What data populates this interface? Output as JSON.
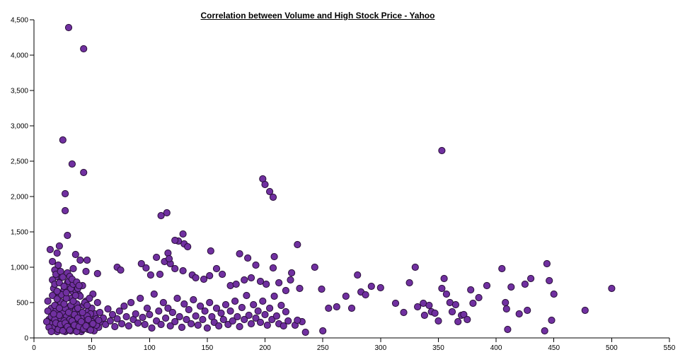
{
  "chart_data": {
    "type": "scatter",
    "title": "Correlation between Volume and High Stock Price - Yahoo",
    "xlabel": "",
    "ylabel": "",
    "xlim": [
      0,
      550
    ],
    "ylim": [
      0,
      4500
    ],
    "x_ticks": [
      "0",
      "50",
      "100",
      "150",
      "200",
      "250",
      "300",
      "350",
      "400",
      "450",
      "500",
      "550"
    ],
    "y_ticks": [
      "0",
      "500",
      "1,000",
      "1,500",
      "2,000",
      "2,500",
      "3,000",
      "3,500",
      "4,000",
      "4,500"
    ],
    "grid": false,
    "point_color": "#7030a0",
    "point_edge_color": "#2a0f3a",
    "points": [
      [
        30,
        4390
      ],
      [
        43,
        4090
      ],
      [
        25,
        2800
      ],
      [
        33,
        2460
      ],
      [
        43,
        2340
      ],
      [
        27,
        2040
      ],
      [
        27,
        1800
      ],
      [
        29,
        1450
      ],
      [
        22,
        1300
      ],
      [
        14,
        1250
      ],
      [
        16,
        1080
      ],
      [
        20,
        1200
      ],
      [
        36,
        1180
      ],
      [
        40,
        1100
      ],
      [
        46,
        1100
      ],
      [
        55,
        910
      ],
      [
        34,
        980
      ],
      [
        45,
        940
      ],
      [
        353,
        2650
      ],
      [
        198,
        2250
      ],
      [
        200,
        2170
      ],
      [
        204,
        2070
      ],
      [
        207,
        1990
      ],
      [
        110,
        1730
      ],
      [
        115,
        1770
      ],
      [
        129,
        1470
      ],
      [
        125,
        1370
      ],
      [
        122,
        1380
      ],
      [
        130,
        1330
      ],
      [
        133,
        1290
      ],
      [
        153,
        1230
      ],
      [
        113,
        1080
      ],
      [
        118,
        1050
      ],
      [
        116,
        1200
      ],
      [
        117,
        1120
      ],
      [
        106,
        1140
      ],
      [
        178,
        1190
      ],
      [
        185,
        1130
      ],
      [
        192,
        1030
      ],
      [
        208,
        1150
      ],
      [
        207,
        990
      ],
      [
        228,
        1320
      ],
      [
        223,
        920
      ],
      [
        243,
        1000
      ],
      [
        230,
        700
      ],
      [
        72,
        1000
      ],
      [
        75,
        960
      ],
      [
        93,
        1050
      ],
      [
        97,
        990
      ],
      [
        101,
        890
      ],
      [
        109,
        900
      ],
      [
        122,
        980
      ],
      [
        129,
        950
      ],
      [
        137,
        890
      ],
      [
        140,
        850
      ],
      [
        147,
        830
      ],
      [
        152,
        880
      ],
      [
        158,
        980
      ],
      [
        163,
        900
      ],
      [
        170,
        740
      ],
      [
        175,
        760
      ],
      [
        182,
        820
      ],
      [
        188,
        850
      ],
      [
        196,
        800
      ],
      [
        201,
        760
      ],
      [
        212,
        780
      ],
      [
        218,
        670
      ],
      [
        222,
        820
      ],
      [
        249,
        690
      ],
      [
        255,
        420
      ],
      [
        262,
        440
      ],
      [
        270,
        590
      ],
      [
        275,
        420
      ],
      [
        280,
        890
      ],
      [
        283,
        650
      ],
      [
        287,
        610
      ],
      [
        292,
        730
      ],
      [
        300,
        710
      ],
      [
        313,
        490
      ],
      [
        320,
        360
      ],
      [
        325,
        780
      ],
      [
        330,
        1000
      ],
      [
        332,
        440
      ],
      [
        337,
        490
      ],
      [
        338,
        320
      ],
      [
        342,
        460
      ],
      [
        344,
        370
      ],
      [
        347,
        350
      ],
      [
        350,
        240
      ],
      [
        353,
        700
      ],
      [
        355,
        840
      ],
      [
        357,
        620
      ],
      [
        360,
        500
      ],
      [
        362,
        370
      ],
      [
        365,
        470
      ],
      [
        367,
        230
      ],
      [
        370,
        320
      ],
      [
        372,
        330
      ],
      [
        375,
        260
      ],
      [
        378,
        680
      ],
      [
        380,
        490
      ],
      [
        385,
        570
      ],
      [
        392,
        740
      ],
      [
        405,
        980
      ],
      [
        408,
        500
      ],
      [
        409,
        410
      ],
      [
        410,
        120
      ],
      [
        413,
        720
      ],
      [
        420,
        340
      ],
      [
        425,
        760
      ],
      [
        427,
        390
      ],
      [
        430,
        840
      ],
      [
        442,
        100
      ],
      [
        444,
        1050
      ],
      [
        446,
        810
      ],
      [
        448,
        250
      ],
      [
        450,
        620
      ],
      [
        477,
        390
      ],
      [
        500,
        700
      ],
      [
        250,
        100
      ],
      [
        235,
        80
      ],
      [
        232,
        230
      ],
      [
        226,
        180
      ],
      [
        228,
        250
      ],
      [
        12,
        520
      ],
      [
        13,
        260
      ],
      [
        14,
        180
      ],
      [
        15,
        420
      ],
      [
        16,
        600
      ],
      [
        17,
        700
      ],
      [
        18,
        330
      ],
      [
        19,
        140
      ],
      [
        20,
        870
      ],
      [
        21,
        640
      ],
      [
        22,
        240
      ],
      [
        23,
        510
      ],
      [
        24,
        180
      ],
      [
        25,
        360
      ],
      [
        26,
        680
      ],
      [
        27,
        90
      ],
      [
        28,
        300
      ],
      [
        29,
        780
      ],
      [
        30,
        150
      ],
      [
        31,
        430
      ],
      [
        32,
        560
      ],
      [
        33,
        270
      ],
      [
        34,
        650
      ],
      [
        35,
        120
      ],
      [
        36,
        390
      ],
      [
        37,
        480
      ],
      [
        38,
        220
      ],
      [
        39,
        610
      ],
      [
        40,
        330
      ],
      [
        41,
        170
      ],
      [
        42,
        740
      ],
      [
        43,
        460
      ],
      [
        44,
        260
      ],
      [
        45,
        520
      ],
      [
        46,
        140
      ],
      [
        47,
        380
      ],
      [
        48,
        290
      ],
      [
        49,
        210
      ],
      [
        50,
        420
      ],
      [
        51,
        620
      ],
      [
        52,
        180
      ],
      [
        53,
        340
      ],
      [
        54,
        270
      ],
      [
        55,
        500
      ],
      [
        56,
        150
      ],
      [
        57,
        360
      ],
      [
        58,
        230
      ],
      [
        60,
        280
      ],
      [
        62,
        190
      ],
      [
        64,
        410
      ],
      [
        66,
        240
      ],
      [
        68,
        330
      ],
      [
        70,
        160
      ],
      [
        72,
        270
      ],
      [
        74,
        380
      ],
      [
        76,
        200
      ],
      [
        78,
        450
      ],
      [
        80,
        300
      ],
      [
        82,
        170
      ],
      [
        84,
        500
      ],
      [
        86,
        260
      ],
      [
        88,
        340
      ],
      [
        90,
        210
      ],
      [
        92,
        560
      ],
      [
        94,
        290
      ],
      [
        96,
        190
      ],
      [
        98,
        420
      ],
      [
        100,
        330
      ],
      [
        102,
        140
      ],
      [
        104,
        620
      ],
      [
        106,
        240
      ],
      [
        108,
        380
      ],
      [
        110,
        190
      ],
      [
        112,
        500
      ],
      [
        114,
        280
      ],
      [
        116,
        420
      ],
      [
        118,
        170
      ],
      [
        120,
        360
      ],
      [
        122,
        230
      ],
      [
        124,
        560
      ],
      [
        126,
        300
      ],
      [
        128,
        150
      ],
      [
        130,
        480
      ],
      [
        132,
        260
      ],
      [
        134,
        400
      ],
      [
        136,
        200
      ],
      [
        138,
        540
      ],
      [
        140,
        310
      ],
      [
        142,
        180
      ],
      [
        144,
        450
      ],
      [
        146,
        260
      ],
      [
        148,
        380
      ],
      [
        150,
        140
      ],
      [
        152,
        500
      ],
      [
        154,
        300
      ],
      [
        156,
        220
      ],
      [
        158,
        420
      ],
      [
        160,
        170
      ],
      [
        162,
        350
      ],
      [
        164,
        260
      ],
      [
        166,
        470
      ],
      [
        168,
        190
      ],
      [
        170,
        380
      ],
      [
        172,
        240
      ],
      [
        174,
        520
      ],
      [
        176,
        300
      ],
      [
        178,
        160
      ],
      [
        180,
        430
      ],
      [
        182,
        260
      ],
      [
        184,
        600
      ],
      [
        186,
        320
      ],
      [
        188,
        200
      ],
      [
        190,
        470
      ],
      [
        192,
        280
      ],
      [
        194,
        380
      ],
      [
        196,
        220
      ],
      [
        198,
        520
      ],
      [
        200,
        330
      ],
      [
        202,
        180
      ],
      [
        204,
        420
      ],
      [
        206,
        260
      ],
      [
        208,
        590
      ],
      [
        210,
        310
      ],
      [
        212,
        200
      ],
      [
        214,
        460
      ],
      [
        216,
        170
      ],
      [
        218,
        370
      ],
      [
        220,
        240
      ],
      [
        15,
        300
      ],
      [
        17,
        220
      ],
      [
        19,
        380
      ],
      [
        21,
        160
      ],
      [
        23,
        280
      ],
      [
        25,
        200
      ],
      [
        27,
        420
      ],
      [
        29,
        110
      ],
      [
        31,
        260
      ],
      [
        33,
        190
      ],
      [
        35,
        330
      ],
      [
        37,
        140
      ],
      [
        39,
        250
      ],
      [
        41,
        90
      ],
      [
        43,
        300
      ],
      [
        45,
        230
      ],
      [
        47,
        120
      ],
      [
        49,
        340
      ],
      [
        14,
        200
      ],
      [
        16,
        140
      ],
      [
        18,
        260
      ],
      [
        20,
        90
      ],
      [
        22,
        320
      ],
      [
        24,
        120
      ],
      [
        26,
        240
      ],
      [
        28,
        170
      ],
      [
        30,
        360
      ],
      [
        32,
        100
      ],
      [
        34,
        220
      ],
      [
        36,
        150
      ],
      [
        38,
        280
      ],
      [
        40,
        200
      ],
      [
        42,
        120
      ],
      [
        44,
        190
      ],
      [
        46,
        310
      ],
      [
        48,
        160
      ],
      [
        50,
        230
      ],
      [
        52,
        100
      ],
      [
        54,
        180
      ],
      [
        56,
        250
      ],
      [
        13,
        150
      ],
      [
        15,
        90
      ],
      [
        17,
        340
      ],
      [
        19,
        210
      ],
      [
        21,
        120
      ],
      [
        23,
        190
      ],
      [
        25,
        100
      ],
      [
        27,
        210
      ],
      [
        29,
        160
      ],
      [
        31,
        110
      ],
      [
        33,
        240
      ],
      [
        35,
        180
      ],
      [
        37,
        90
      ],
      [
        39,
        160
      ],
      [
        41,
        230
      ],
      [
        43,
        130
      ],
      [
        45,
        170
      ],
      [
        47,
        260
      ],
      [
        49,
        110
      ],
      [
        51,
        200
      ],
      [
        11,
        230
      ],
      [
        12,
        380
      ],
      [
        18,
        460
      ],
      [
        20,
        550
      ],
      [
        22,
        420
      ],
      [
        24,
        610
      ],
      [
        26,
        480
      ],
      [
        28,
        560
      ],
      [
        30,
        720
      ],
      [
        32,
        460
      ],
      [
        34,
        520
      ],
      [
        36,
        680
      ],
      [
        38,
        420
      ],
      [
        40,
        590
      ],
      [
        42,
        360
      ],
      [
        44,
        500
      ],
      [
        46,
        460
      ],
      [
        48,
        560
      ],
      [
        16,
        820
      ],
      [
        18,
        760
      ],
      [
        20,
        660
      ],
      [
        22,
        780
      ],
      [
        24,
        860
      ],
      [
        26,
        730
      ],
      [
        28,
        640
      ],
      [
        30,
        800
      ],
      [
        32,
        700
      ],
      [
        34,
        760
      ],
      [
        36,
        600
      ],
      [
        38,
        700
      ],
      [
        18,
        960
      ],
      [
        19,
        900
      ],
      [
        21,
        1030
      ],
      [
        23,
        940
      ],
      [
        25,
        860
      ],
      [
        29,
        920
      ],
      [
        31,
        870
      ],
      [
        33,
        830
      ],
      [
        37,
        790
      ],
      [
        39,
        740
      ]
    ]
  }
}
